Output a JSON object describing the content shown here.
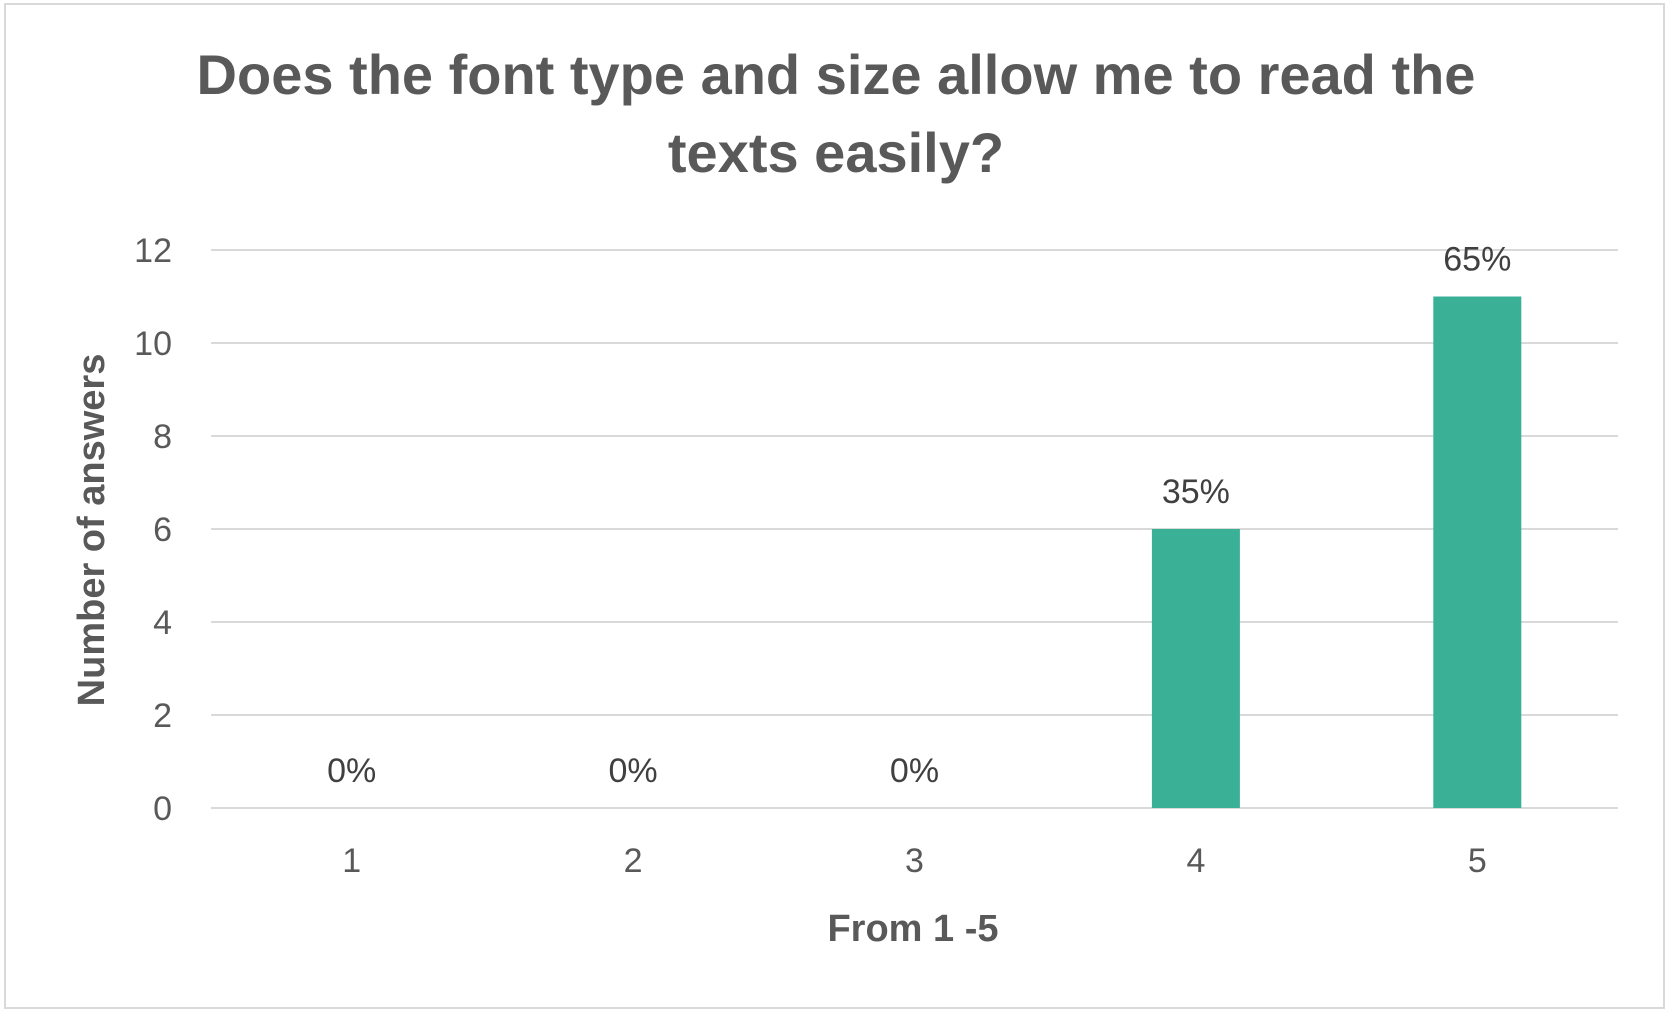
{
  "chart_data": {
    "type": "bar",
    "title": "Does the font type and size allow me to read the texts easily?",
    "xlabel": "From 1 -5",
    "ylabel": "Number of answers",
    "categories": [
      "1",
      "2",
      "3",
      "4",
      "5"
    ],
    "values": [
      0,
      0,
      0,
      6,
      11
    ],
    "data_labels": [
      "0%",
      "0%",
      "0%",
      "35%",
      "65%"
    ],
    "ylim": [
      0,
      12
    ],
    "yticks": [
      "0",
      "2",
      "4",
      "6",
      "8",
      "10",
      "12"
    ],
    "grid": true,
    "legend": "none",
    "colors": {
      "bar": "#3ab197",
      "grid": "#d9d9d9",
      "text": "#595959"
    }
  }
}
